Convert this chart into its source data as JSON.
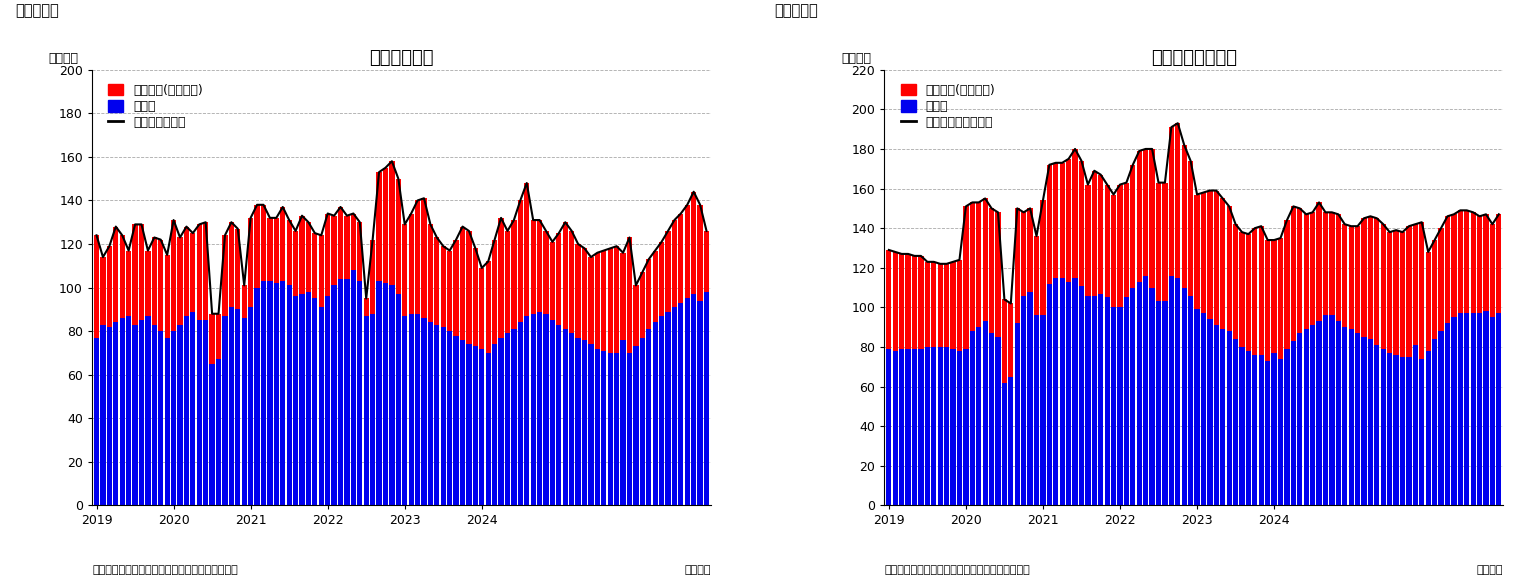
{
  "chart1": {
    "title": "住宅着工件数",
    "ylabel": "（万件）",
    "label_top": "（図表１）",
    "ylim": [
      0,
      200
    ],
    "yticks": [
      0,
      20,
      40,
      60,
      80,
      100,
      120,
      140,
      160,
      180,
      200
    ],
    "legend_red": "集合住宅(二戸以上)",
    "legend_blue": "戸建て",
    "legend_line": "一住宅着工件数",
    "source": "（資料）センサス局よりニッセイ基礎研究所作成",
    "month_label": "（月次）",
    "blue": [
      77,
      83,
      82,
      84,
      86,
      87,
      83,
      85,
      87,
      83,
      80,
      77,
      80,
      83,
      87,
      89,
      85,
      85,
      65,
      67,
      87,
      91,
      90,
      86,
      91,
      100,
      103,
      103,
      102,
      103,
      101,
      96,
      97,
      98,
      95,
      91,
      96,
      101,
      104,
      104,
      108,
      103,
      87,
      88,
      103,
      102,
      101,
      97,
      87,
      88,
      88,
      86,
      84,
      83,
      82,
      80,
      78,
      76,
      74,
      73,
      72,
      70,
      74,
      77,
      79,
      81,
      84,
      87,
      88,
      89,
      88,
      85,
      83,
      81,
      79,
      77,
      76,
      74,
      72,
      71,
      70,
      70,
      76,
      70,
      73,
      77,
      81,
      84,
      87,
      89,
      91,
      93,
      95,
      97,
      94,
      98
    ],
    "red": [
      47,
      31,
      37,
      44,
      38,
      30,
      46,
      44,
      30,
      40,
      42,
      38,
      51,
      40,
      41,
      36,
      44,
      45,
      23,
      21,
      37,
      39,
      37,
      15,
      41,
      38,
      35,
      29,
      30,
      34,
      30,
      30,
      36,
      32,
      30,
      33,
      38,
      32,
      33,
      29,
      26,
      27,
      8,
      34,
      50,
      53,
      57,
      53,
      42,
      46,
      52,
      55,
      45,
      40,
      37,
      37,
      44,
      52,
      52,
      45,
      37,
      42,
      48,
      55,
      47,
      50,
      56,
      61,
      43,
      42,
      38,
      36,
      42,
      49,
      47,
      43,
      42,
      40,
      44,
      46,
      48,
      49,
      40,
      53,
      28,
      30,
      32,
      33,
      34,
      37,
      40,
      41,
      43,
      47,
      44,
      28
    ],
    "xtick_labels": [
      "2019",
      "2020",
      "2021",
      "2022",
      "2023",
      "2024"
    ],
    "xtick_positions": [
      0,
      12,
      24,
      36,
      48,
      60
    ]
  },
  "chart2": {
    "title": "住宅着工許可件数",
    "ylabel": "（万件）",
    "label_top": "（図表２）",
    "ylim": [
      0,
      220
    ],
    "yticks": [
      0,
      20,
      40,
      60,
      80,
      100,
      120,
      140,
      160,
      180,
      200,
      220
    ],
    "legend_red": "集合住宅(二戸以上)",
    "legend_blue": "戸建て",
    "legend_line": "一住宅建築許可件数",
    "source": "（資料）センサス局よりニッセイ基礎研究所作成",
    "month_label": "（月次）",
    "blue": [
      79,
      78,
      79,
      79,
      79,
      79,
      80,
      80,
      80,
      80,
      79,
      78,
      79,
      88,
      90,
      93,
      87,
      85,
      62,
      65,
      92,
      106,
      108,
      96,
      96,
      112,
      115,
      115,
      113,
      115,
      111,
      106,
      106,
      107,
      105,
      100,
      100,
      105,
      110,
      113,
      116,
      110,
      103,
      103,
      116,
      115,
      110,
      106,
      99,
      97,
      94,
      91,
      89,
      88,
      84,
      80,
      78,
      76,
      76,
      73,
      77,
      74,
      79,
      83,
      87,
      89,
      91,
      93,
      96,
      96,
      93,
      90,
      89,
      87,
      85,
      84,
      81,
      79,
      77,
      76,
      75,
      75,
      81,
      74,
      78,
      84,
      88,
      92,
      95,
      97,
      97,
      97,
      97,
      98,
      95,
      97
    ],
    "red": [
      50,
      50,
      48,
      48,
      47,
      47,
      43,
      43,
      42,
      42,
      44,
      46,
      72,
      65,
      63,
      62,
      63,
      63,
      42,
      37,
      58,
      42,
      42,
      40,
      58,
      60,
      58,
      58,
      62,
      65,
      63,
      56,
      63,
      60,
      57,
      57,
      62,
      58,
      62,
      66,
      64,
      70,
      60,
      60,
      75,
      78,
      72,
      68,
      58,
      61,
      65,
      68,
      66,
      63,
      58,
      58,
      59,
      64,
      65,
      61,
      57,
      61,
      65,
      68,
      63,
      58,
      57,
      60,
      52,
      52,
      54,
      52,
      52,
      54,
      60,
      62,
      64,
      63,
      61,
      63,
      63,
      66,
      61,
      69,
      50,
      50,
      52,
      54,
      52,
      52,
      52,
      51,
      49,
      49,
      47,
      50
    ],
    "xtick_labels": [
      "2019",
      "2020",
      "2021",
      "2022",
      "2023",
      "2024"
    ],
    "xtick_positions": [
      0,
      12,
      24,
      36,
      48,
      60
    ]
  },
  "bar_color_red": "#FF0000",
  "bar_color_blue": "#0000EE",
  "line_color": "#000000",
  "bg_color": "#FFFFFF",
  "grid_color": "#AAAAAA",
  "title_fontsize": 13,
  "label_fontsize": 9,
  "tick_fontsize": 9,
  "legend_fontsize": 9,
  "source_fontsize": 8
}
